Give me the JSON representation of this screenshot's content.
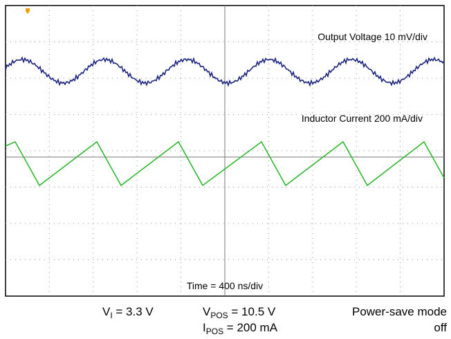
{
  "scope": {
    "trace_labels": [
      "Output Voltage 10 mV/div",
      "Inductor Current 200 mA/div"
    ],
    "timebase": "Time = 400 ns/div"
  },
  "conditions": [
    {
      "symbol": "V",
      "subscript": "I",
      "rest": " = 3.3 V"
    },
    {
      "symbol": "V",
      "subscript": "POS",
      "rest": " = 10.5 V"
    },
    {
      "symbol": "I",
      "subscript": "POS",
      "rest": " = 200 mA"
    }
  ],
  "mode": [
    "Power-save mode",
    "off"
  ]
}
